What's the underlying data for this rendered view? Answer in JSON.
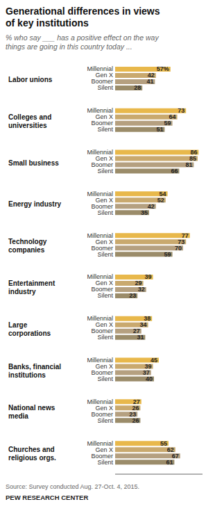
{
  "chart_data": {
    "type": "bar",
    "orientation": "horizontal",
    "title": "Generational differences in views\nof key institutions",
    "subtitle": "% who say ___ has a positive effect on the way\nthings are going in this country today ...",
    "annotations": [
      "Source: Survey conducted Aug. 27-Oct. 4, 2015.",
      "PEW RESEARCH CENTER"
    ],
    "categories": [
      "Labor unions",
      "Colleges and\nuniversities",
      "Small business",
      "Energy industry",
      "Technology\ncompanies",
      "Entertainment\nindustry",
      "Large\ncorporations",
      "Banks, financial\ninstitutions",
      "National news\nmedia",
      "Churches and\nreligious orgs."
    ],
    "series": [
      {
        "name": "Millennial",
        "color": "#E8B84B",
        "values": [
          57,
          73,
          86,
          54,
          77,
          39,
          38,
          45,
          27,
          55
        ],
        "value_labels": [
          "57%",
          "73",
          "86",
          "54",
          "77",
          "39",
          "38",
          "45",
          "27",
          "55"
        ]
      },
      {
        "name": "Gen X",
        "color": "#C9A96E",
        "values": [
          42,
          64,
          85,
          52,
          73,
          29,
          34,
          39,
          26,
          62
        ],
        "value_labels": [
          "42",
          "64",
          "85",
          "52",
          "73",
          "29",
          "34",
          "39",
          "26",
          "62"
        ]
      },
      {
        "name": "Boomer",
        "color": "#B5A080",
        "values": [
          41,
          59,
          81,
          42,
          70,
          32,
          27,
          37,
          23,
          67
        ],
        "value_labels": [
          "41",
          "59",
          "81",
          "42",
          "70",
          "32",
          "27",
          "37",
          "23",
          "67"
        ]
      },
      {
        "name": "Silent",
        "color": "#9B8C6A",
        "values": [
          28,
          51,
          66,
          35,
          59,
          23,
          31,
          40,
          26,
          61
        ],
        "value_labels": [
          "28",
          "51",
          "66",
          "35",
          "59",
          "23",
          "31",
          "40",
          "26",
          "61"
        ]
      }
    ],
    "xlim": [
      0,
      90
    ],
    "tick_labels": false,
    "data_labels": true,
    "grid": false
  }
}
